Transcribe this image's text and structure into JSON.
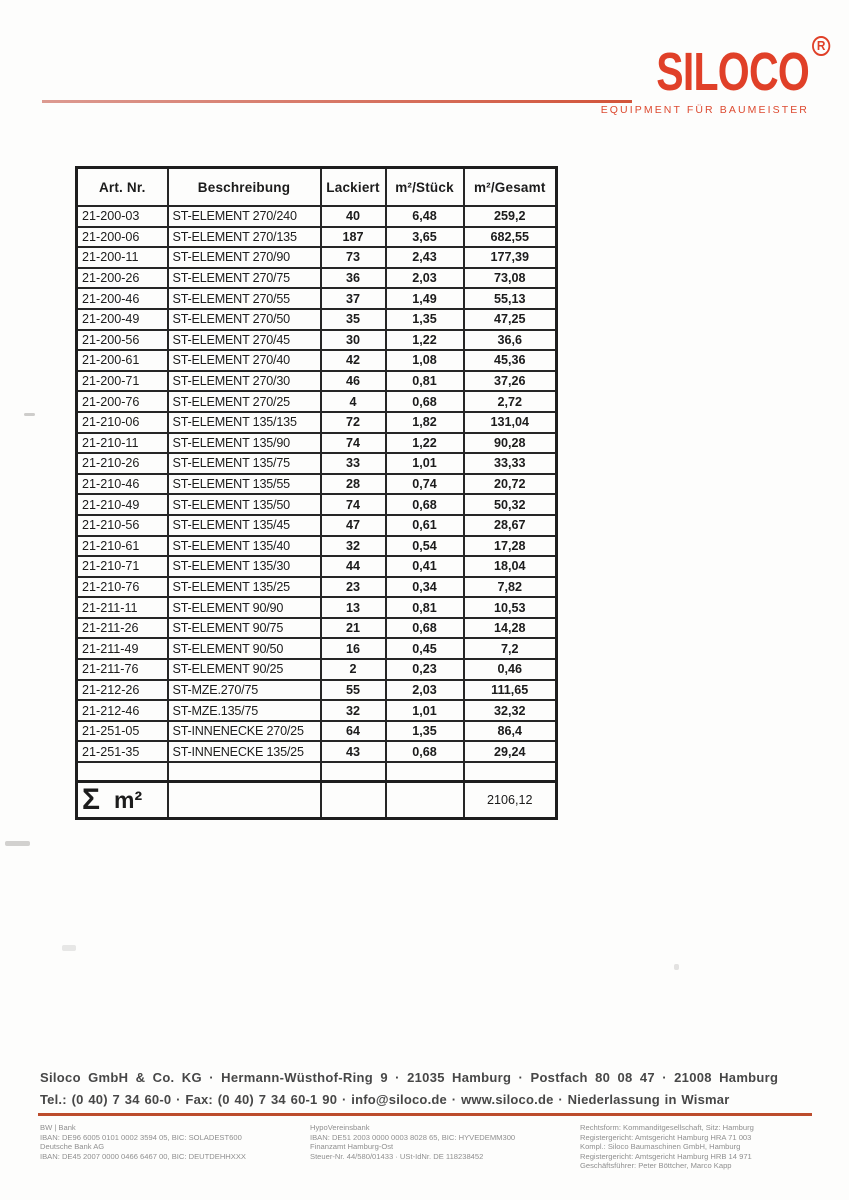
{
  "logo": {
    "brand": "SILOCO",
    "registered": "R",
    "tagline": "EQUIPMENT FÜR BAUMEISTER",
    "brand_color": "#e04028"
  },
  "table": {
    "headers": [
      "Art. Nr.",
      "Beschreibung",
      "Lackiert",
      "m²/Stück",
      "m²/Gesamt"
    ],
    "rows": [
      [
        "21-200-03",
        "ST-ELEMENT 270/240",
        "40",
        "6,48",
        "259,2"
      ],
      [
        "21-200-06",
        "ST-ELEMENT 270/135",
        "187",
        "3,65",
        "682,55"
      ],
      [
        "21-200-11",
        "ST-ELEMENT 270/90",
        "73",
        "2,43",
        "177,39"
      ],
      [
        "21-200-26",
        "ST-ELEMENT 270/75",
        "36",
        "2,03",
        "73,08"
      ],
      [
        "21-200-46",
        "ST-ELEMENT 270/55",
        "37",
        "1,49",
        "55,13"
      ],
      [
        "21-200-49",
        "ST-ELEMENT 270/50",
        "35",
        "1,35",
        "47,25"
      ],
      [
        "21-200-56",
        "ST-ELEMENT 270/45",
        "30",
        "1,22",
        "36,6"
      ],
      [
        "21-200-61",
        "ST-ELEMENT 270/40",
        "42",
        "1,08",
        "45,36"
      ],
      [
        "21-200-71",
        "ST-ELEMENT 270/30",
        "46",
        "0,81",
        "37,26"
      ],
      [
        "21-200-76",
        "ST-ELEMENT 270/25",
        "4",
        "0,68",
        "2,72"
      ],
      [
        "21-210-06",
        "ST-ELEMENT 135/135",
        "72",
        "1,82",
        "131,04"
      ],
      [
        "21-210-11",
        "ST-ELEMENT 135/90",
        "74",
        "1,22",
        "90,28"
      ],
      [
        "21-210-26",
        "ST-ELEMENT 135/75",
        "33",
        "1,01",
        "33,33"
      ],
      [
        "21-210-46",
        "ST-ELEMENT 135/55",
        "28",
        "0,74",
        "20,72"
      ],
      [
        "21-210-49",
        "ST-ELEMENT 135/50",
        "74",
        "0,68",
        "50,32"
      ],
      [
        "21-210-56",
        "ST-ELEMENT 135/45",
        "47",
        "0,61",
        "28,67"
      ],
      [
        "21-210-61",
        "ST-ELEMENT 135/40",
        "32",
        "0,54",
        "17,28"
      ],
      [
        "21-210-71",
        "ST-ELEMENT 135/30",
        "44",
        "0,41",
        "18,04"
      ],
      [
        "21-210-76",
        "ST-ELEMENT 135/25",
        "23",
        "0,34",
        "7,82"
      ],
      [
        "21-211-11",
        "ST-ELEMENT  90/90",
        "13",
        "0,81",
        "10,53"
      ],
      [
        "21-211-26",
        "ST-ELEMENT  90/75",
        "21",
        "0,68",
        "14,28"
      ],
      [
        "21-211-49",
        "ST-ELEMENT  90/50",
        "16",
        "0,45",
        "7,2"
      ],
      [
        "21-211-76",
        "ST-ELEMENT  90/25",
        "2",
        "0,23",
        "0,46"
      ],
      [
        "21-212-26",
        "ST-MZE.270/75",
        "55",
        "2,03",
        "111,65"
      ],
      [
        "21-212-46",
        "ST-MZE.135/75",
        "32",
        "1,01",
        "32,32"
      ],
      [
        "21-251-05",
        "ST-INNENECKE 270/25",
        "64",
        "1,35",
        "86,4"
      ],
      [
        "21-251-35",
        "ST-INNENECKE 135/25",
        "43",
        "0,68",
        "29,24"
      ]
    ],
    "sum": {
      "sigma": "Σ",
      "unit": "m²",
      "value": "2106,12"
    }
  },
  "footer": {
    "address_line": "Siloco GmbH & Co. KG · Hermann-Wüsthof-Ring 9 · 21035 Hamburg · Postfach 80 08 47 · 21008 Hamburg",
    "contact_line": "Tel.: (0 40) 7 34 60-0 · Fax: (0 40) 7 34 60-1 90 · info@siloco.de · www.siloco.de · Niederlassung in Wismar",
    "legal_columns": [
      {
        "lines": [
          "BW | Bank",
          "IBAN: DE96 6005 0101 0002 3594 05, BIC: SOLADEST600",
          "Deutsche Bank AG",
          "IBAN: DE45 2007 0000 0466 6467 00, BIC: DEUTDEHHXXX"
        ]
      },
      {
        "lines": [
          "HypoVereinsbank",
          "IBAN: DE51 2003 0000 0003 8028 65, BIC: HYVEDEMM300",
          "Finanzamt Hamburg-Ost",
          "Steuer-Nr. 44/580/01433 · USt-IdNr. DE 118238452"
        ]
      },
      {
        "lines": [
          "Rechtsform: Kommanditgesellschaft, Sitz: Hamburg",
          "Registergericht: Amtsgericht Hamburg HRA 71 003",
          "Kompl.: Siloco Baumaschinen GmbH, Hamburg",
          "Registergericht: Amtsgericht Hamburg HRB 14 971",
          "Geschäftsführer: Peter Böttcher, Marco Kapp"
        ]
      }
    ]
  }
}
